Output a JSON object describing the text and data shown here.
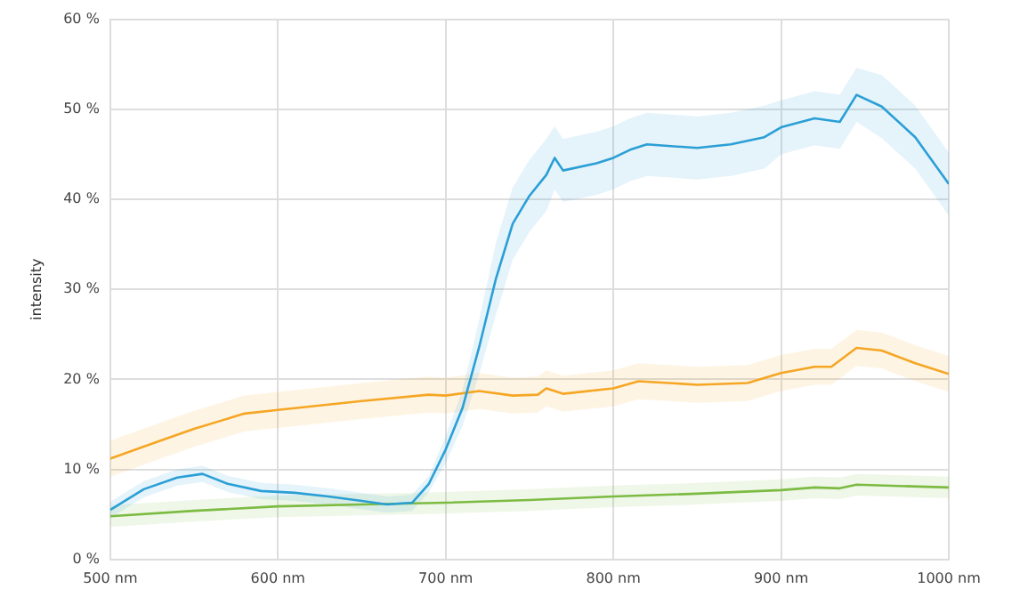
{
  "chart_data": {
    "type": "line",
    "ylabel": "intensity",
    "xlim": [
      500,
      1000
    ],
    "ylim": [
      0,
      60
    ],
    "xticks": [
      {
        "value": 500,
        "label": "500 nm"
      },
      {
        "value": 600,
        "label": "600 nm"
      },
      {
        "value": 700,
        "label": "700 nm"
      },
      {
        "value": 800,
        "label": "800 nm"
      },
      {
        "value": 900,
        "label": "900 nm"
      },
      {
        "value": 1000,
        "label": "1000 nm"
      }
    ],
    "yticks": [
      {
        "value": 0,
        "label": "0 %"
      },
      {
        "value": 10,
        "label": "10 %"
      },
      {
        "value": 20,
        "label": "20 %"
      },
      {
        "value": 30,
        "label": "30 %"
      },
      {
        "value": 40,
        "label": "40 %"
      },
      {
        "value": 50,
        "label": "50 %"
      },
      {
        "value": 60,
        "label": "60 %"
      }
    ],
    "grid": true,
    "legend": false,
    "marker": "none",
    "line_style": "solid",
    "series": [
      {
        "color": "#2a9fd6",
        "x": [
          500,
          520,
          540,
          555,
          570,
          590,
          610,
          630,
          650,
          665,
          680,
          690,
          700,
          710,
          720,
          730,
          740,
          750,
          760,
          765,
          770,
          790,
          800,
          810,
          820,
          850,
          870,
          890,
          900,
          920,
          935,
          945,
          960,
          980,
          1000
        ],
        "values": [
          5.5,
          7.8,
          9.1,
          9.5,
          8.4,
          7.6,
          7.4,
          7.0,
          6.5,
          6.1,
          6.3,
          8.4,
          12.2,
          16.8,
          23.6,
          31.2,
          37.3,
          40.4,
          42.7,
          44.6,
          43.2,
          44.0,
          44.6,
          45.5,
          46.1,
          45.7,
          46.1,
          46.9,
          48.0,
          49.0,
          48.6,
          51.6,
          50.3,
          46.9,
          41.7
        ],
        "lower": [
          4.6,
          6.9,
          8.2,
          8.6,
          7.5,
          6.7,
          6.5,
          6.1,
          5.6,
          5.2,
          5.4,
          7.5,
          10.7,
          14.8,
          20.6,
          27.2,
          33.3,
          36.4,
          38.7,
          41.1,
          39.7,
          40.5,
          41.1,
          42.0,
          42.6,
          42.2,
          42.6,
          43.4,
          45.0,
          46.0,
          45.6,
          48.6,
          46.8,
          43.4,
          38.2
        ],
        "upper": [
          6.4,
          8.7,
          10.0,
          10.4,
          9.3,
          8.5,
          8.3,
          7.9,
          7.4,
          7.0,
          7.2,
          9.3,
          13.7,
          18.8,
          26.6,
          35.2,
          41.3,
          44.4,
          46.7,
          48.1,
          46.7,
          47.5,
          48.1,
          49.0,
          49.6,
          49.2,
          49.6,
          50.4,
          51.0,
          52.0,
          51.6,
          54.6,
          53.8,
          50.4,
          45.2
        ]
      },
      {
        "color": "#f5a623",
        "x": [
          500,
          530,
          550,
          580,
          600,
          650,
          690,
          700,
          720,
          740,
          755,
          760,
          770,
          800,
          815,
          850,
          880,
          900,
          920,
          930,
          945,
          960,
          980,
          1000
        ],
        "values": [
          11.2,
          13.2,
          14.5,
          16.2,
          16.6,
          17.6,
          18.3,
          18.2,
          18.7,
          18.2,
          18.3,
          19.0,
          18.4,
          19.0,
          19.8,
          19.4,
          19.6,
          20.7,
          21.4,
          21.4,
          23.5,
          23.2,
          21.8,
          20.6
        ],
        "lower": [
          9.2,
          11.2,
          12.5,
          14.2,
          14.6,
          15.6,
          16.3,
          16.2,
          16.7,
          16.2,
          16.3,
          17.0,
          16.4,
          17.0,
          17.8,
          17.4,
          17.6,
          18.7,
          19.4,
          19.4,
          21.5,
          21.2,
          19.8,
          18.6
        ],
        "upper": [
          13.2,
          15.2,
          16.5,
          18.2,
          18.6,
          19.6,
          20.3,
          20.2,
          20.7,
          20.2,
          20.3,
          21.0,
          20.4,
          21.0,
          21.8,
          21.4,
          21.6,
          22.7,
          23.4,
          23.4,
          25.5,
          25.2,
          23.8,
          22.6
        ]
      },
      {
        "color": "#7cbb42",
        "x": [
          500,
          550,
          600,
          650,
          700,
          750,
          800,
          850,
          900,
          920,
          935,
          945,
          1000
        ],
        "values": [
          4.8,
          5.4,
          5.9,
          6.1,
          6.3,
          6.6,
          7.0,
          7.3,
          7.7,
          8.0,
          7.9,
          8.3,
          8.0
        ],
        "lower": [
          3.6,
          4.2,
          4.7,
          4.9,
          5.1,
          5.4,
          5.8,
          6.1,
          6.5,
          6.8,
          6.7,
          7.1,
          6.8
        ],
        "upper": [
          6.0,
          6.6,
          7.1,
          7.3,
          7.5,
          7.8,
          8.2,
          8.5,
          8.9,
          9.2,
          9.1,
          9.5,
          9.2
        ]
      }
    ]
  }
}
